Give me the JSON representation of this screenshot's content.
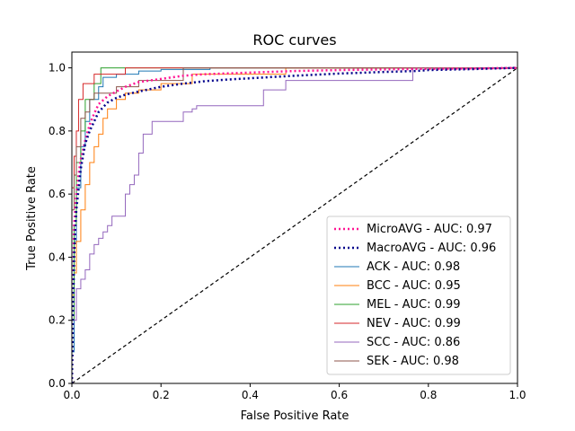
{
  "chart_data": {
    "type": "line",
    "title": "ROC curves",
    "xlabel": "False Positive Rate",
    "ylabel": "True Positive Rate",
    "xlim": [
      0.0,
      1.0
    ],
    "ylim": [
      0.0,
      1.05
    ],
    "xticks": [
      0.0,
      0.2,
      0.4,
      0.6,
      0.8,
      1.0
    ],
    "yticks": [
      0.0,
      0.2,
      0.4,
      0.6,
      0.8,
      1.0
    ],
    "tick_labels_x": [
      "0.0",
      "0.2",
      "0.4",
      "0.6",
      "0.8",
      "1.0"
    ],
    "tick_labels_y": [
      "0.0",
      "0.2",
      "0.4",
      "0.6",
      "0.8",
      "1.0"
    ],
    "legend_position": "lower-right",
    "grid": false,
    "diagonal": {
      "x": [
        0,
        1
      ],
      "y": [
        0,
        1
      ],
      "color": "#000000",
      "style": "dashed"
    },
    "series": [
      {
        "name": "MicroAVG - AUC: 0.97",
        "color": "#ff1493",
        "style": "dotted",
        "width": 2.5,
        "x": [
          0,
          0.005,
          0.01,
          0.015,
          0.02,
          0.03,
          0.04,
          0.05,
          0.06,
          0.08,
          0.1,
          0.12,
          0.15,
          0.2,
          0.25,
          0.3,
          0.4,
          0.5,
          0.6,
          0.7,
          0.8,
          0.9,
          1.0
        ],
        "y": [
          0,
          0.5,
          0.6,
          0.66,
          0.71,
          0.77,
          0.82,
          0.855,
          0.885,
          0.91,
          0.925,
          0.94,
          0.955,
          0.965,
          0.975,
          0.98,
          0.985,
          0.99,
          0.993,
          0.995,
          0.997,
          0.998,
          1.0
        ]
      },
      {
        "name": "MacroAVG - AUC: 0.96",
        "color": "#00008b",
        "style": "dotted",
        "width": 2.5,
        "x": [
          0,
          0.005,
          0.01,
          0.02,
          0.03,
          0.04,
          0.05,
          0.06,
          0.08,
          0.1,
          0.12,
          0.15,
          0.2,
          0.25,
          0.3,
          0.35,
          0.4,
          0.45,
          0.5,
          0.6,
          0.7,
          0.77,
          0.8,
          0.9,
          1.0
        ],
        "y": [
          0,
          0.4,
          0.55,
          0.68,
          0.76,
          0.8,
          0.83,
          0.86,
          0.89,
          0.905,
          0.915,
          0.925,
          0.94,
          0.95,
          0.958,
          0.963,
          0.967,
          0.971,
          0.975,
          0.982,
          0.987,
          0.99,
          0.993,
          0.996,
          1.0
        ]
      },
      {
        "name": "ACK - AUC: 0.98",
        "color": "#1f77b4",
        "style": "solid",
        "width": 1,
        "x": [
          0,
          0,
          0.005,
          0.005,
          0.01,
          0.01,
          0.02,
          0.02,
          0.03,
          0.03,
          0.04,
          0.04,
          0.06,
          0.06,
          0.07,
          0.07,
          0.1,
          0.1,
          0.15,
          0.15,
          0.2,
          0.2,
          0.31,
          0.31,
          1.0
        ],
        "y": [
          0,
          0.1,
          0.1,
          0.45,
          0.45,
          0.62,
          0.62,
          0.75,
          0.75,
          0.83,
          0.83,
          0.9,
          0.9,
          0.94,
          0.94,
          0.97,
          0.97,
          0.98,
          0.98,
          0.99,
          0.99,
          0.995,
          0.995,
          1.0,
          1.0
        ]
      },
      {
        "name": "BCC - AUC: 0.95",
        "color": "#ff7f0e",
        "style": "solid",
        "width": 1,
        "x": [
          0,
          0,
          0.005,
          0.005,
          0.01,
          0.01,
          0.02,
          0.02,
          0.03,
          0.03,
          0.04,
          0.04,
          0.05,
          0.05,
          0.06,
          0.06,
          0.07,
          0.07,
          0.08,
          0.08,
          0.1,
          0.1,
          0.12,
          0.12,
          0.15,
          0.15,
          0.2,
          0.2,
          0.27,
          0.27,
          0.48,
          0.48,
          1.0
        ],
        "y": [
          0,
          0.28,
          0.28,
          0.35,
          0.35,
          0.45,
          0.45,
          0.55,
          0.55,
          0.63,
          0.63,
          0.7,
          0.7,
          0.75,
          0.75,
          0.79,
          0.79,
          0.84,
          0.84,
          0.87,
          0.87,
          0.9,
          0.9,
          0.92,
          0.92,
          0.93,
          0.93,
          0.95,
          0.95,
          0.98,
          0.98,
          1.0,
          1.0
        ]
      },
      {
        "name": "MEL - AUC: 0.99",
        "color": "#2ca02c",
        "style": "solid",
        "width": 1,
        "x": [
          0,
          0,
          0.005,
          0.005,
          0.01,
          0.01,
          0.02,
          0.02,
          0.03,
          0.03,
          0.05,
          0.05,
          0.065,
          0.065,
          1.0
        ],
        "y": [
          0,
          0.2,
          0.2,
          0.5,
          0.5,
          0.7,
          0.7,
          0.8,
          0.8,
          0.9,
          0.9,
          0.95,
          0.95,
          1.0,
          1.0
        ]
      },
      {
        "name": "NEV - AUC: 0.99",
        "color": "#d62728",
        "style": "solid",
        "width": 1,
        "x": [
          0,
          0,
          0.005,
          0.005,
          0.01,
          0.01,
          0.015,
          0.015,
          0.025,
          0.025,
          0.05,
          0.05,
          0.12,
          0.12,
          1.0
        ],
        "y": [
          0,
          0.62,
          0.62,
          0.72,
          0.72,
          0.8,
          0.8,
          0.9,
          0.9,
          0.95,
          0.95,
          0.98,
          0.98,
          1.0,
          1.0
        ]
      },
      {
        "name": "SCC - AUC: 0.86",
        "color": "#9467bd",
        "style": "solid",
        "width": 1,
        "x": [
          0,
          0,
          0.01,
          0.01,
          0.02,
          0.02,
          0.03,
          0.03,
          0.04,
          0.04,
          0.05,
          0.05,
          0.06,
          0.06,
          0.07,
          0.07,
          0.08,
          0.08,
          0.09,
          0.09,
          0.12,
          0.12,
          0.13,
          0.13,
          0.14,
          0.14,
          0.15,
          0.15,
          0.16,
          0.16,
          0.18,
          0.18,
          0.25,
          0.25,
          0.27,
          0.27,
          0.28,
          0.28,
          0.43,
          0.43,
          0.48,
          0.48,
          0.765,
          0.765,
          1.0
        ],
        "y": [
          0,
          0.2,
          0.2,
          0.3,
          0.3,
          0.33,
          0.33,
          0.36,
          0.36,
          0.41,
          0.41,
          0.44,
          0.44,
          0.46,
          0.46,
          0.48,
          0.48,
          0.5,
          0.5,
          0.53,
          0.53,
          0.6,
          0.6,
          0.63,
          0.63,
          0.66,
          0.66,
          0.73,
          0.73,
          0.79,
          0.79,
          0.83,
          0.83,
          0.86,
          0.86,
          0.87,
          0.87,
          0.88,
          0.88,
          0.93,
          0.93,
          0.96,
          0.96,
          1.0,
          1.0
        ]
      },
      {
        "name": "SEK - AUC: 0.98",
        "color": "#8c564b",
        "style": "solid",
        "width": 1,
        "x": [
          0,
          0,
          0.005,
          0.005,
          0.01,
          0.01,
          0.02,
          0.02,
          0.03,
          0.03,
          0.04,
          0.04,
          0.05,
          0.05,
          0.1,
          0.1,
          0.15,
          0.15,
          0.25,
          0.25,
          1.0
        ],
        "y": [
          0,
          0.55,
          0.55,
          0.66,
          0.66,
          0.75,
          0.75,
          0.84,
          0.84,
          0.86,
          0.86,
          0.9,
          0.9,
          0.92,
          0.92,
          0.94,
          0.94,
          0.96,
          0.96,
          1.0,
          1.0
        ]
      }
    ]
  }
}
